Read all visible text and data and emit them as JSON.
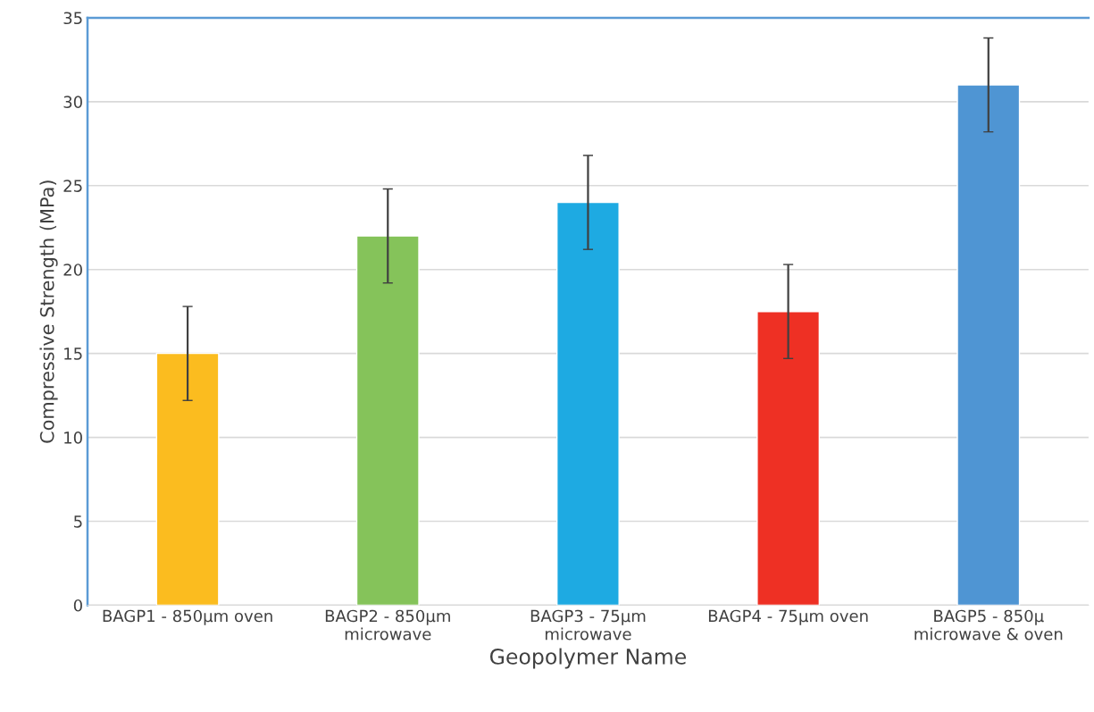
{
  "chart_data": {
    "type": "bar",
    "xlabel": "Geopolymer Name",
    "ylabel": "Compressive Strength (MPa)",
    "categories": [
      "BAGP1 - 850µm oven",
      "BAGP2 - 850µm\nmicrowave",
      "BAGP3 - 75µm\nmicrowave",
      "BAGP4 - 75µm oven",
      "BAGP5 - 850µ\nmicrowave & oven"
    ],
    "values": [
      15,
      22,
      24,
      17.5,
      31
    ],
    "errors": [
      2.8,
      2.8,
      2.8,
      2.8,
      2.8
    ],
    "colors": [
      "#fbbc1f",
      "#85c35a",
      "#1eaae2",
      "#ee3024",
      "#4f95d3"
    ],
    "ylim": [
      0,
      35
    ],
    "yticks": [
      0,
      5,
      10,
      15,
      20,
      25,
      30,
      35
    ],
    "grid": "y",
    "legend": false
  }
}
